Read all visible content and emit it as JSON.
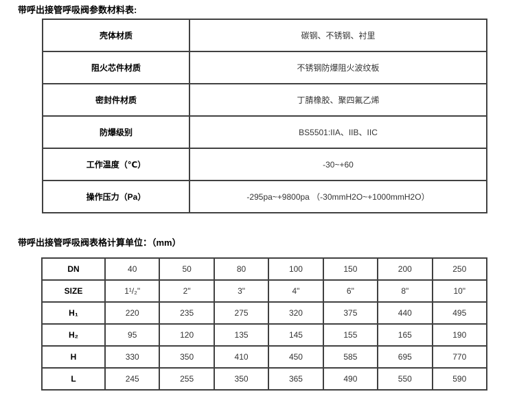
{
  "titles": {
    "materials": "带呼出接管呼吸阀参数材料表:",
    "dimensions": "带呼出接管呼吸阀表格计算单位：（mm）"
  },
  "colors": {
    "text": "#000000",
    "value_text": "#333333",
    "table_border": "#404040",
    "background": "#ffffff"
  },
  "materials_table": {
    "rows": [
      {
        "label": "壳体材质",
        "value": "碳钢、不锈钢、衬里"
      },
      {
        "label": "阻火芯件材质",
        "value": "不锈钢防爆阻火波纹板"
      },
      {
        "label": "密封件材质",
        "value": "丁腈橡胶、聚四氟乙烯"
      },
      {
        "label": "防爆级别",
        "value": "BS5501:IIA、IIB、IIC"
      },
      {
        "label": "工作温度（℃）",
        "value": "-30~+60"
      },
      {
        "label": "操作压力（Pa）",
        "value": "-295pa~+9800pa （-30mmH2O~+1000mmH2O）"
      }
    ]
  },
  "dimensions_table": {
    "unit": "mm",
    "rows": [
      {
        "header": "DN",
        "values": [
          "40",
          "50",
          "80",
          "100",
          "150",
          "200",
          "250"
        ]
      },
      {
        "header": "SIZE",
        "values": [
          "1¹/₂\"",
          "2\"",
          "3\"",
          "4\"",
          "6\"",
          "8\"",
          "10\""
        ]
      },
      {
        "header": "H₁",
        "values": [
          "220",
          "235",
          "275",
          "320",
          "375",
          "440",
          "495"
        ]
      },
      {
        "header": "H₂",
        "values": [
          "95",
          "120",
          "135",
          "145",
          "155",
          "165",
          "190"
        ]
      },
      {
        "header": "H",
        "values": [
          "330",
          "350",
          "410",
          "450",
          "585",
          "695",
          "770"
        ]
      },
      {
        "header": "L",
        "values": [
          "245",
          "255",
          "350",
          "365",
          "490",
          "550",
          "590"
        ]
      }
    ]
  }
}
